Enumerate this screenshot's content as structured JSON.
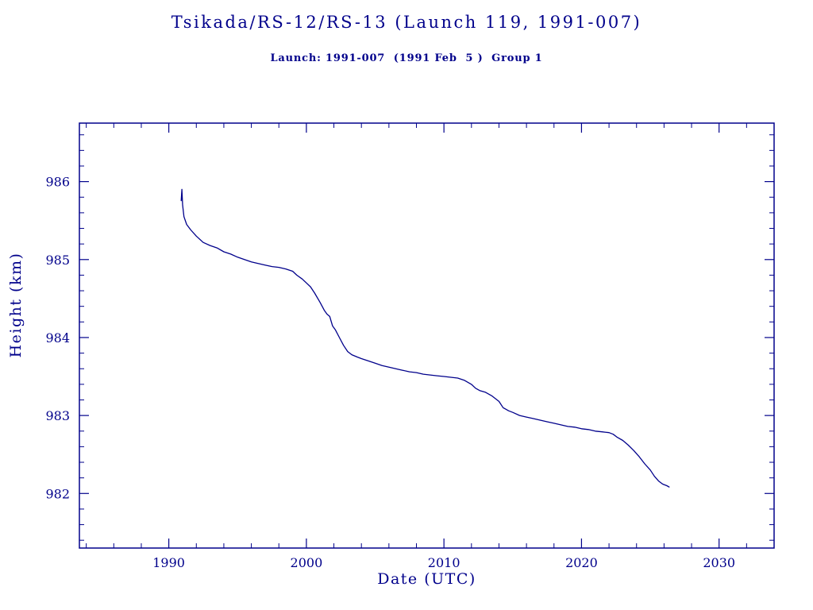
{
  "chart_data": {
    "type": "line",
    "title": "Tsikada/RS-12/RS-13 (Launch 119, 1991-007)",
    "subtitle": "Launch: 1991-007  (1991 Feb  5 )  Group 1",
    "xlabel": "Date (UTC)",
    "ylabel": "Height (km)",
    "xlim": [
      1983.5,
      2034
    ],
    "ylim": [
      981.3,
      986.75
    ],
    "x_major_ticks": [
      1990,
      2000,
      2010,
      2020,
      2030
    ],
    "x_minor_step": 2,
    "y_major_ticks": [
      982,
      983,
      984,
      985,
      986
    ],
    "y_minor_step": 0.2,
    "grid": false,
    "legend": "none",
    "line_color": "#00008B",
    "text_color": "#00008B",
    "background_color": "#ffffff",
    "series": [
      {
        "name": "Height (km)",
        "points": [
          [
            1990.9,
            985.75
          ],
          [
            1990.95,
            985.9
          ],
          [
            1991.0,
            985.7
          ],
          [
            1991.1,
            985.55
          ],
          [
            1991.3,
            985.45
          ],
          [
            1991.6,
            985.38
          ],
          [
            1992.0,
            985.3
          ],
          [
            1992.5,
            985.22
          ],
          [
            1993.0,
            985.18
          ],
          [
            1993.5,
            985.15
          ],
          [
            1994.0,
            985.1
          ],
          [
            1994.5,
            985.07
          ],
          [
            1995.0,
            985.03
          ],
          [
            1995.5,
            985.0
          ],
          [
            1996.0,
            984.97
          ],
          [
            1996.5,
            984.95
          ],
          [
            1997.0,
            984.93
          ],
          [
            1997.5,
            984.91
          ],
          [
            1998.0,
            984.9
          ],
          [
            1998.5,
            984.88
          ],
          [
            1999.0,
            984.85
          ],
          [
            1999.3,
            984.8
          ],
          [
            1999.7,
            984.75
          ],
          [
            2000.0,
            984.7
          ],
          [
            2000.3,
            984.65
          ],
          [
            2000.6,
            984.57
          ],
          [
            2001.0,
            984.45
          ],
          [
            2001.3,
            984.35
          ],
          [
            2001.5,
            984.3
          ],
          [
            2001.7,
            984.27
          ],
          [
            2001.9,
            984.15
          ],
          [
            2002.1,
            984.1
          ],
          [
            2002.4,
            984.0
          ],
          [
            2002.7,
            983.9
          ],
          [
            2003.0,
            983.82
          ],
          [
            2003.3,
            983.78
          ],
          [
            2003.7,
            983.75
          ],
          [
            2004.0,
            983.73
          ],
          [
            2004.5,
            983.7
          ],
          [
            2005.0,
            983.67
          ],
          [
            2005.5,
            983.64
          ],
          [
            2006.0,
            983.62
          ],
          [
            2006.5,
            983.6
          ],
          [
            2007.0,
            983.58
          ],
          [
            2007.5,
            983.56
          ],
          [
            2008.0,
            983.55
          ],
          [
            2008.5,
            983.53
          ],
          [
            2009.0,
            983.52
          ],
          [
            2009.5,
            983.51
          ],
          [
            2010.0,
            983.5
          ],
          [
            2010.5,
            983.49
          ],
          [
            2011.0,
            983.48
          ],
          [
            2011.5,
            983.45
          ],
          [
            2012.0,
            983.4
          ],
          [
            2012.3,
            983.35
          ],
          [
            2012.6,
            983.32
          ],
          [
            2013.0,
            983.3
          ],
          [
            2013.5,
            983.25
          ],
          [
            2014.0,
            983.18
          ],
          [
            2014.3,
            983.1
          ],
          [
            2014.7,
            983.06
          ],
          [
            2015.0,
            983.04
          ],
          [
            2015.5,
            983.0
          ],
          [
            2016.0,
            982.98
          ],
          [
            2016.5,
            982.96
          ],
          [
            2017.0,
            982.94
          ],
          [
            2017.5,
            982.92
          ],
          [
            2018.0,
            982.9
          ],
          [
            2018.5,
            982.88
          ],
          [
            2019.0,
            982.86
          ],
          [
            2019.5,
            982.85
          ],
          [
            2020.0,
            982.83
          ],
          [
            2020.5,
            982.82
          ],
          [
            2021.0,
            982.8
          ],
          [
            2021.5,
            982.79
          ],
          [
            2022.0,
            982.78
          ],
          [
            2022.3,
            982.76
          ],
          [
            2022.6,
            982.72
          ],
          [
            2023.0,
            982.68
          ],
          [
            2023.4,
            982.62
          ],
          [
            2023.8,
            982.55
          ],
          [
            2024.2,
            982.47
          ],
          [
            2024.6,
            982.38
          ],
          [
            2025.0,
            982.3
          ],
          [
            2025.3,
            982.22
          ],
          [
            2025.6,
            982.16
          ],
          [
            2025.9,
            982.12
          ],
          [
            2026.2,
            982.1
          ],
          [
            2026.4,
            982.08
          ]
        ]
      }
    ]
  }
}
